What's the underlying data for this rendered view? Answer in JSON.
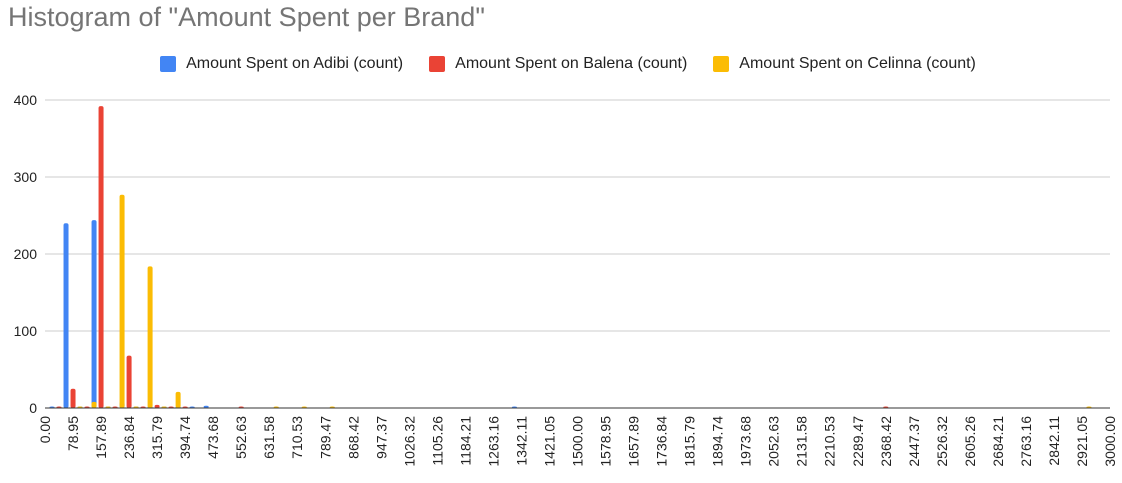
{
  "chart_data": {
    "type": "bar",
    "title": "Histogram of \"Amount Spent per Brand\"",
    "xlabel": "",
    "ylabel": "",
    "ylim": [
      0,
      400
    ],
    "yticks": [
      0,
      100,
      200,
      300,
      400
    ],
    "grid": true,
    "legend_position": "top",
    "bin_width": 39.47,
    "x_ticks": [
      "0.00",
      "78.95",
      "157.89",
      "236.84",
      "315.79",
      "394.74",
      "473.68",
      "552.63",
      "631.58",
      "710.53",
      "789.47",
      "868.42",
      "947.37",
      "1026.32",
      "1105.26",
      "1184.21",
      "1263.16",
      "1342.11",
      "1421.05",
      "1500.00",
      "1578.95",
      "1657.89",
      "1736.84",
      "1815.79",
      "1894.74",
      "1973.68",
      "2052.63",
      "2131.58",
      "2210.53",
      "2289.47",
      "2368.42",
      "2447.37",
      "2526.32",
      "2605.26",
      "2684.21",
      "2763.16",
      "2842.11",
      "2921.05",
      "3000.00"
    ],
    "series": [
      {
        "name": "Amount Spent on Adibi  (count)",
        "color": "#4285F4",
        "bins": [
          39.47,
          78.95,
          118.42,
          157.89,
          197.37,
          236.84,
          276.32,
          315.79,
          355.26,
          394.74,
          434.21,
          473.68,
          1342.11
        ],
        "values": [
          0,
          240,
          0,
          244,
          0,
          8,
          0,
          1,
          0,
          0,
          0,
          3,
          1
        ]
      },
      {
        "name": "Amount Spent on  Balena (count)",
        "color": "#EA4335",
        "bins": [
          39.47,
          78.95,
          118.42,
          157.89,
          197.37,
          236.84,
          276.32,
          315.79,
          355.26,
          394.74,
          552.63,
          2368.42
        ],
        "values": [
          1,
          25,
          0,
          392,
          0,
          68,
          0,
          4,
          0,
          0,
          1,
          1
        ]
      },
      {
        "name": "Amount Spent on  Celinna (count)",
        "color": "#FBBC04",
        "bins": [
          78.95,
          118.42,
          157.89,
          197.37,
          236.84,
          276.32,
          315.79,
          355.26,
          631.58,
          710.53,
          789.47,
          2921.05
        ],
        "values": [
          0,
          8,
          0,
          277,
          0,
          184,
          0,
          21,
          1,
          2,
          1,
          1
        ]
      }
    ]
  }
}
